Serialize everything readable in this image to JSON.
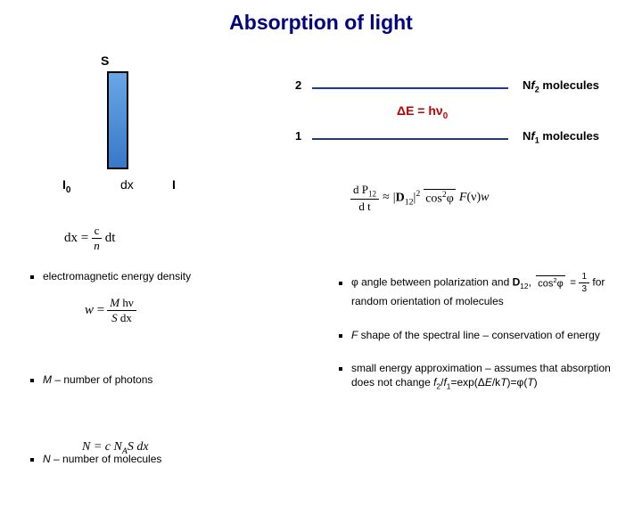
{
  "title": "Absorption of light",
  "diagram": {
    "S": "S",
    "I0_html": "I<sub>0</sub>",
    "dx": "dx",
    "I": "I"
  },
  "levels": {
    "level2_num": "2",
    "level1_num": "1",
    "nf2_html": "N<i>f</i><sub>2</sub> molecules",
    "nf1_html": "N<i>f</i><sub>1</sub> molecules",
    "deltaE_html": "&Delta;E = h&nu;<sub>0</sub>"
  },
  "eq_dp": {
    "lhs_num": "d P<sub>12</sub>",
    "lhs_den": "d t",
    "approx": "&approx;",
    "D12": "|<b>D</b><sub>12</sub>|<sup>2</sup>",
    "cos2": "cos<sup>2</sup>&phi;",
    "Fw": "<span style='font-style:italic'>F</span>(&nu;)<span style='font-style:italic'>w</span>",
    "overline": true
  },
  "eq_dx": {
    "lhs": "dx =",
    "num": "c",
    "den": "<i>n</i>",
    "tail": "dt"
  },
  "eq_w": {
    "lhs": "<i>w</i> =",
    "num": "<i>M</i> h&nu;",
    "den": "<i>S</i> dx"
  },
  "left_bullets": [
    "electromagnetic energy density",
    "<span class='ital'>M</span> – number of photons",
    "<span class='ital'>N</span> – number of molecules"
  ],
  "right_bullets": [
    "&phi; angle between polarization and <b>D</b><sub>12</sub>, <span class='cos2block'><span class='topline'>cos<sup>2</sup>&phi;</span></span> = <span class='frac' style='font-size:10px;display:inline-flex;vertical-align:middle'><span class='num'>1</span><span class='den'>3</span></span> for random orientation of molecules",
    "<span class='ital'>F</span> shape of the spectral line &ndash; conservation of energy",
    "small energy approximation &ndash; assumes that absorption does not change <span class='ital'>f</span><sub>2</sub>/<span class='ital'>f</span><sub>1</sub>=exp(&Delta;<span class='ital'>E</span>/k<span class='ital'>T</span>)=&phi;(<span class='ital'>T</span>)"
  ],
  "eq_N": "N = c N<sub>A</sub>S dx",
  "colors": {
    "title": "#000080",
    "deltaE": "#c00000",
    "level_line": "#1f3a8a",
    "slab_top": "#6aa6e6",
    "slab_bottom": "#3878c8",
    "background": "#ffffff"
  }
}
